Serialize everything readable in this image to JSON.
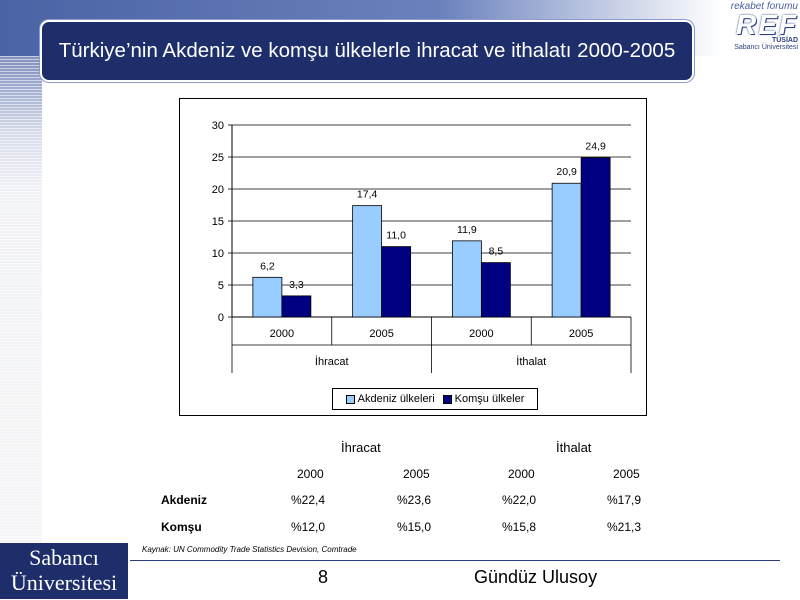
{
  "slide": {
    "title": "Türkiye’nin Akdeniz ve komşu ülkelerle ihracat ve ithalatı 2000-2005",
    "page_number": "8",
    "author": "Gündüz Ulusoy",
    "source": "Kaynak: UN Commodity Trade Statistics Devision, Comtrade"
  },
  "logo": {
    "tagline": "rekabet forumu",
    "name": "REF",
    "org": "TÜSİAD",
    "university": "Sabancı Üniversitesi"
  },
  "university_logo": {
    "line1": "Sabancı",
    "line2": "Üniversitesi"
  },
  "colors": {
    "akdeniz": "#99ccff",
    "komsu": "#000080",
    "title_bg": "#1d2e6a"
  },
  "chart_data": {
    "type": "bar",
    "title": "",
    "ylabel": "",
    "ylim": [
      0,
      30
    ],
    "yticks": [
      0,
      5,
      10,
      15,
      20,
      25,
      30
    ],
    "grid": true,
    "legend_position": "bottom",
    "categories": [
      "2000",
      "2005",
      "2000",
      "2005"
    ],
    "groups": [
      {
        "label": "İhracat",
        "categories": [
          "2000",
          "2005"
        ]
      },
      {
        "label": "İthalat",
        "categories": [
          "2000",
          "2005"
        ]
      }
    ],
    "series": [
      {
        "name": "Akdeniz ülkeleri",
        "values": [
          6.2,
          17.4,
          11.9,
          20.9
        ],
        "labels": [
          "6,2",
          "17,4",
          "11,9",
          "20,9"
        ]
      },
      {
        "name": "Komşu ülkeler",
        "values": [
          3.3,
          11.0,
          8.5,
          24.9
        ],
        "labels": [
          "3,3",
          "11,0",
          "8,5",
          "24,9"
        ]
      }
    ]
  },
  "table": {
    "groups": [
      "İhracat",
      "İthalat"
    ],
    "years": [
      "2000",
      "2005",
      "2000",
      "2005"
    ],
    "rows": [
      {
        "label": "Akdeniz",
        "values": [
          "%22,4",
          "%23,6",
          "%22,0",
          "%17,9"
        ]
      },
      {
        "label": "Komşu",
        "values": [
          "%12,0",
          "%15,0",
          "%15,8",
          "%21,3"
        ]
      }
    ]
  }
}
